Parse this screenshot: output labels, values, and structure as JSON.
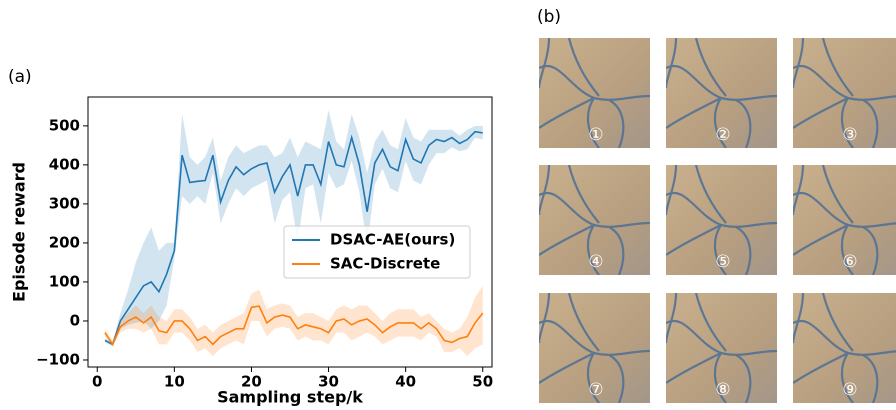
{
  "panel_labels": [
    "(a)",
    "(b)"
  ],
  "chart_data": {
    "type": "line",
    "xlabel": "Sampling step/k",
    "ylabel": "Episode reward",
    "x": [
      1,
      2,
      3,
      4,
      5,
      6,
      7,
      8,
      9,
      10,
      11,
      12,
      13,
      14,
      15,
      16,
      17,
      18,
      19,
      20,
      21,
      22,
      23,
      24,
      25,
      26,
      27,
      28,
      29,
      30,
      31,
      32,
      33,
      34,
      35,
      36,
      37,
      38,
      39,
      40,
      41,
      42,
      43,
      44,
      45,
      46,
      47,
      48,
      49,
      50
    ],
    "xlim": [
      -1.2,
      51.2
    ],
    "ylim": [
      -118,
      574
    ],
    "xticks": [
      0,
      10,
      20,
      30,
      40,
      50
    ],
    "yticks": [
      {
        "value": -100,
        "label": "−100"
      },
      0,
      100,
      200,
      300,
      400,
      500
    ],
    "legend": "center right",
    "series": [
      {
        "name": "DSAC-AE(ours)",
        "color": "#1f77b4",
        "values": [
          -50,
          -60,
          0,
          30,
          60,
          90,
          100,
          75,
          120,
          180,
          425,
          355,
          358,
          360,
          425,
          305,
          360,
          395,
          375,
          390,
          400,
          405,
          330,
          370,
          400,
          320,
          400,
          400,
          350,
          460,
          400,
          395,
          470,
          400,
          280,
          405,
          440,
          395,
          385,
          465,
          415,
          405,
          450,
          465,
          460,
          470,
          455,
          465,
          485,
          482
        ],
        "upper": [
          -45,
          -55,
          20,
          80,
          150,
          200,
          240,
          180,
          200,
          200,
          530,
          420,
          400,
          420,
          470,
          360,
          420,
          450,
          430,
          440,
          450,
          450,
          420,
          430,
          470,
          420,
          460,
          450,
          440,
          540,
          460,
          440,
          530,
          470,
          380,
          460,
          490,
          450,
          440,
          520,
          470,
          460,
          490,
          490,
          490,
          490,
          475,
          490,
          500,
          500
        ],
        "lower": [
          -55,
          -65,
          -20,
          -10,
          -5,
          0,
          -20,
          0,
          40,
          160,
          320,
          300,
          320,
          300,
          380,
          250,
          300,
          340,
          320,
          340,
          350,
          360,
          250,
          310,
          330,
          200,
          340,
          350,
          250,
          380,
          340,
          350,
          410,
          330,
          190,
          350,
          390,
          340,
          330,
          410,
          360,
          350,
          400,
          430,
          430,
          445,
          435,
          440,
          470,
          465
        ]
      },
      {
        "name": "SAC-Discrete",
        "color": "#ff7f0e",
        "values": [
          -30,
          -60,
          -15,
          0,
          10,
          -5,
          10,
          -25,
          -30,
          0,
          0,
          -20,
          -50,
          -40,
          -60,
          -40,
          -30,
          -20,
          -20,
          35,
          38,
          -5,
          10,
          15,
          10,
          -20,
          -10,
          -15,
          -20,
          -30,
          0,
          5,
          -10,
          0,
          5,
          -10,
          -30,
          -15,
          -5,
          -5,
          -5,
          -20,
          -5,
          -20,
          -50,
          -55,
          -45,
          -40,
          -5,
          20
        ],
        "upper": [
          -20,
          -50,
          0,
          20,
          40,
          20,
          40,
          10,
          0,
          30,
          30,
          10,
          -20,
          -10,
          -30,
          -10,
          0,
          10,
          20,
          70,
          80,
          30,
          40,
          45,
          40,
          10,
          20,
          20,
          10,
          0,
          30,
          40,
          30,
          40,
          40,
          20,
          0,
          20,
          30,
          30,
          30,
          10,
          20,
          0,
          -20,
          -30,
          -20,
          10,
          60,
          90
        ],
        "lower": [
          -40,
          -65,
          -30,
          -20,
          -20,
          -30,
          -20,
          -60,
          -60,
          -30,
          -30,
          -50,
          -80,
          -70,
          -90,
          -70,
          -60,
          -50,
          -60,
          0,
          0,
          -40,
          -20,
          -15,
          -20,
          -50,
          -40,
          -50,
          -50,
          -60,
          -30,
          -30,
          -50,
          -40,
          -30,
          -40,
          -60,
          -50,
          -40,
          -40,
          -40,
          -50,
          -30,
          -40,
          -80,
          -80,
          -70,
          -90,
          -70,
          -60
        ]
      }
    ]
  },
  "images": [
    "①",
    "②",
    "③",
    "④",
    "⑤",
    "⑥",
    "⑦",
    "⑧",
    "⑨"
  ]
}
